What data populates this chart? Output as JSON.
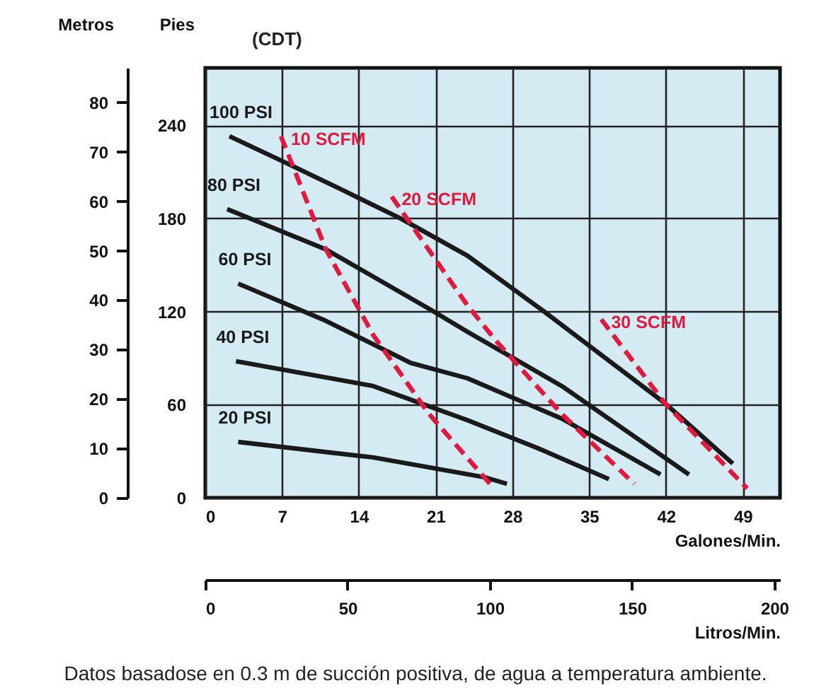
{
  "chart_data": {
    "type": "line",
    "xlabel": "Galones/Min.",
    "ylabel": "Pies",
    "y2label": "Metros",
    "x2label": "Litros/Min.",
    "annotations": [
      "(CDT)",
      "Datos basadose en 0.3 m de succión positiva, de agua a temperatura ambiente."
    ],
    "xlim": [
      0,
      52.4
    ],
    "xticks": [
      0,
      7,
      14,
      21,
      28,
      35,
      42,
      49
    ],
    "ylim": [
      0,
      277
    ],
    "yticks": [
      0,
      60,
      120,
      180,
      240
    ],
    "y2lim": [
      0,
      87
    ],
    "y2ticks": [
      0,
      10,
      20,
      30,
      40,
      50,
      60,
      70,
      80
    ],
    "x2lim": [
      0,
      202
    ],
    "x2ticks": [
      0,
      50,
      100,
      150,
      200
    ],
    "grid": true,
    "series": [
      {
        "name": "100 PSI",
        "color": "#1a1a1a",
        "line_style": "solid",
        "x": [
          2.2,
          7.3,
          12.3,
          17.8,
          23.9,
          30.7,
          41.9,
          48.1
        ],
        "values": [
          233,
          216,
          199,
          180,
          156,
          121,
          61,
          22
        ]
      },
      {
        "name": "80 PSI",
        "color": "#1a1a1a",
        "line_style": "solid",
        "x": [
          2.0,
          11.0,
          20.6,
          23.9,
          32.5,
          44.1
        ],
        "values": [
          186,
          160,
          121,
          107,
          72,
          15
        ]
      },
      {
        "name": "60 PSI",
        "color": "#1a1a1a",
        "line_style": "solid",
        "x": [
          3.0,
          11.0,
          18.7,
          23.9,
          32.5,
          41.5
        ],
        "values": [
          138,
          114,
          87,
          77,
          51,
          15
        ]
      },
      {
        "name": "40 PSI",
        "color": "#1a1a1a",
        "line_style": "solid",
        "x": [
          2.8,
          15.3,
          23.9,
          30.3,
          36.8
        ],
        "values": [
          88,
          72,
          50,
          32,
          12
        ]
      },
      {
        "name": "20 PSI",
        "color": "#1a1a1a",
        "line_style": "solid",
        "x": [
          3.0,
          15.3,
          25.6,
          27.5
        ],
        "values": [
          36,
          26,
          13,
          9
        ]
      },
      {
        "name": "10 SCFM",
        "color": "#e0193f",
        "line_style": "dashed",
        "x": [
          6.9,
          11.0,
          15.3,
          20.4,
          26.2
        ],
        "values": [
          233,
          160,
          105,
          54,
          7
        ]
      },
      {
        "name": "20 SCFM",
        "color": "#e0193f",
        "line_style": "dashed",
        "x": [
          17.0,
          23.9,
          26.4,
          32.5,
          39.1
        ],
        "values": [
          194,
          124,
          102,
          54,
          9
        ]
      },
      {
        "name": "30 SCFM",
        "color": "#e0193f",
        "line_style": "dashed",
        "x": [
          36.1,
          41.9,
          49.4
        ],
        "values": [
          115,
          61,
          6
        ]
      }
    ]
  }
}
